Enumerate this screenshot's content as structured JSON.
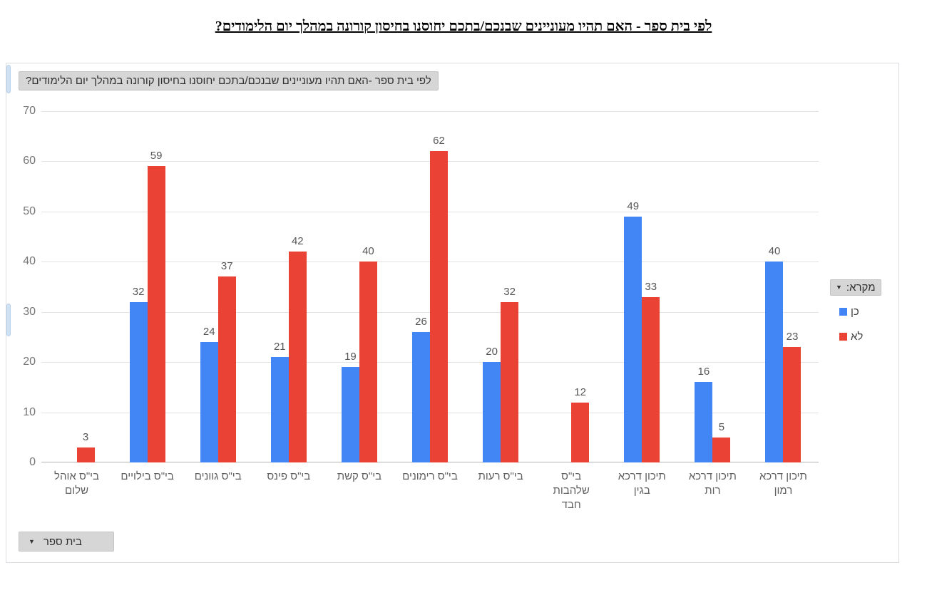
{
  "page": {
    "title": "לפי בית ספר - האם תהיו מעוניינים שבנכם/בתכם יחוסנו בחיסון קורונה במהלך יום הלימודים?"
  },
  "chart": {
    "inner_title": "לפי בית ספר -האם תהיו מעוניינים שבנכם/בתכם יחוסנו בחיסון קורונה במהלך יום הלימודים?",
    "legend_header": "מקרא:",
    "filter_label": "בית ספר"
  },
  "chart_data": {
    "type": "bar",
    "title": "לפי בית ספר -האם תהיו מעוניינים שבנכם/בתכם יחוסנו בחיסון קורונה במהלך יום הלימודים?",
    "categories": [
      "בי\"ס אוהל שלום",
      "בי\"ס בילויים",
      "בי\"ס גוונים",
      "בי\"ס פינס",
      "בי\"ס קשת",
      "בי\"ס רימונים",
      "בי\"ס רעות",
      "בי\"ס שלהבות חבד",
      "תיכון דרכא בגין",
      "תיכון דרכא רות",
      "תיכון דרכא רמון"
    ],
    "category_lines": [
      [
        "בי\"ס אוהל",
        "שלום"
      ],
      [
        "בי\"ס בילויים"
      ],
      [
        "בי\"ס גוונים"
      ],
      [
        "בי\"ס פינס"
      ],
      [
        "בי\"ס קשת"
      ],
      [
        "בי\"ס רימונים"
      ],
      [
        "בי\"ס רעות"
      ],
      [
        "בי\"ס",
        "שלהבות",
        "חבד"
      ],
      [
        "תיכון דרכא",
        "בגין"
      ],
      [
        "תיכון דרכא",
        "רות"
      ],
      [
        "תיכון דרכא",
        "רמון"
      ]
    ],
    "series": [
      {
        "name": "כן",
        "color": "#4285f4",
        "values": [
          null,
          32,
          24,
          21,
          19,
          26,
          20,
          null,
          49,
          16,
          40
        ]
      },
      {
        "name": "לא",
        "color": "#ea4335",
        "values": [
          3,
          59,
          37,
          42,
          40,
          62,
          32,
          12,
          33,
          5,
          23
        ]
      }
    ],
    "xlabel": "",
    "ylabel": "",
    "ylim": [
      0,
      70
    ],
    "yticks": [
      0,
      10,
      20,
      30,
      40,
      50,
      60,
      70
    ],
    "grid": true,
    "legend_position": "right",
    "data_labels": true
  },
  "colors": {
    "series_yes": "#4285f4",
    "series_no": "#ea4335",
    "chip_bg": "#d6d6d6",
    "grid": "#e2e2e2",
    "axis_text": "#757575",
    "value_text": "#575757"
  }
}
